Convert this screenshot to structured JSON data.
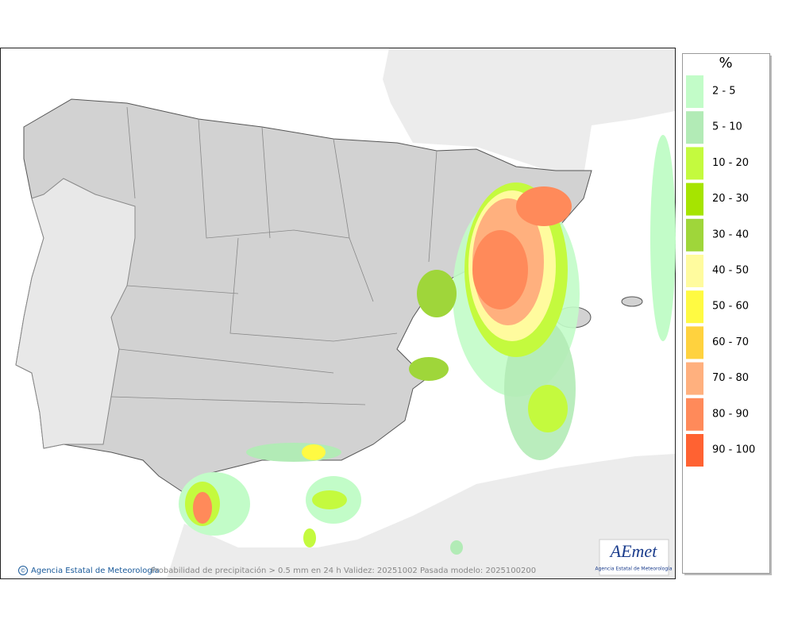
{
  "legend": {
    "title": "%",
    "items": [
      {
        "label": "2 - 5",
        "color": "#c2fcc8"
      },
      {
        "label": "5 - 10",
        "color": "#b2ebb6"
      },
      {
        "label": "10 - 20",
        "color": "#c4fa3e"
      },
      {
        "label": "20 - 30",
        "color": "#a6e400"
      },
      {
        "label": "30 - 40",
        "color": "#9fd63a"
      },
      {
        "label": "40 - 50",
        "color": "#fffb9e"
      },
      {
        "label": "50 - 60",
        "color": "#fffa42"
      },
      {
        "label": "60 - 70",
        "color": "#ffd23e"
      },
      {
        "label": "70 - 80",
        "color": "#ffb07e"
      },
      {
        "label": "80 - 90",
        "color": "#ff8a5a"
      },
      {
        "label": "90 - 100",
        "color": "#ff6232"
      }
    ]
  },
  "footer": {
    "copyright": "©",
    "credit": "Agencia Estatal de Meteorología",
    "caption": "Probabilidad de precipitación > 0.5 mm en 24 h Validez: 20251002 Pasada modelo: 2025100200"
  },
  "logo": {
    "name": "AEmet",
    "subtitle": "Agencia Estatal de Meteorología"
  }
}
